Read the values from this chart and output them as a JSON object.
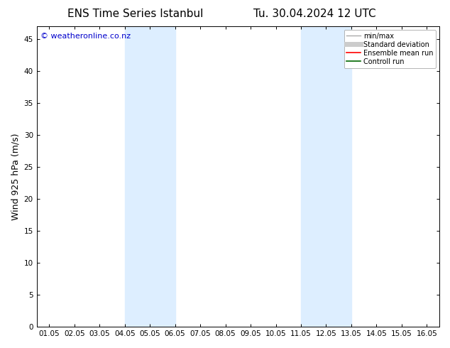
{
  "title_left": "ENS Time Series Istanbul",
  "title_right": "Tu. 30.04.2024 12 UTC",
  "ylabel": "Wind 925 hPa (m/s)",
  "watermark": "© weatheronline.co.nz",
  "x_tick_labels": [
    "01.05",
    "02.05",
    "03.05",
    "04.05",
    "05.05",
    "06.05",
    "07.05",
    "08.05",
    "09.05",
    "10.05",
    "11.05",
    "12.05",
    "13.05",
    "14.05",
    "15.05",
    "16.05"
  ],
  "x_tick_positions": [
    1,
    2,
    3,
    4,
    5,
    6,
    7,
    8,
    9,
    10,
    11,
    12,
    13,
    14,
    15,
    16
  ],
  "xlim": [
    0.5,
    16.5
  ],
  "ylim": [
    0,
    47
  ],
  "y_ticks": [
    0,
    5,
    10,
    15,
    20,
    25,
    30,
    35,
    40,
    45
  ],
  "shaded_regions": [
    {
      "xmin": 4.0,
      "xmax": 6.0,
      "color": "#ddeeff"
    },
    {
      "xmin": 11.0,
      "xmax": 13.0,
      "color": "#ddeeff"
    }
  ],
  "legend_entries": [
    {
      "label": "min/max",
      "color": "#aaaaaa",
      "lw": 1.0,
      "style": "solid"
    },
    {
      "label": "Standard deviation",
      "color": "#cccccc",
      "lw": 5,
      "style": "solid"
    },
    {
      "label": "Ensemble mean run",
      "color": "#ff0000",
      "lw": 1.2,
      "style": "solid"
    },
    {
      "label": "Controll run",
      "color": "#006600",
      "lw": 1.2,
      "style": "solid"
    }
  ],
  "background_color": "#ffffff",
  "plot_bg_color": "#ffffff",
  "border_color": "#000000",
  "title_fontsize": 11,
  "tick_fontsize": 7.5,
  "ylabel_fontsize": 9,
  "watermark_color": "#0000cc",
  "watermark_fontsize": 8,
  "legend_fontsize": 7
}
